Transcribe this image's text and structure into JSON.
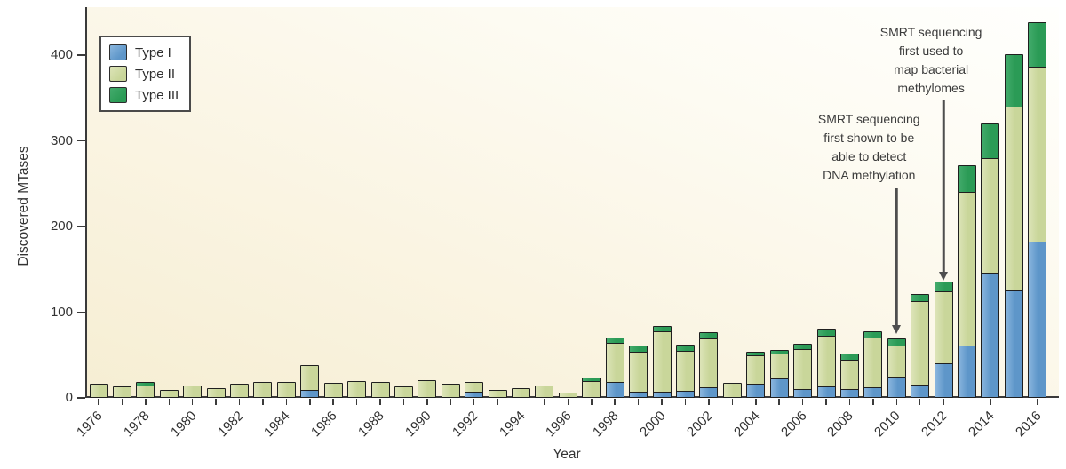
{
  "chart_data": {
    "type": "bar",
    "stacked": true,
    "xlabel": "Year",
    "ylabel": "Discovered MTases",
    "ylim": [
      0,
      440
    ],
    "yticks": [
      0,
      100,
      200,
      300,
      400
    ],
    "x_tick_label_every": 2,
    "grid": false,
    "legend_position": "top-left",
    "categories": [
      1976,
      1977,
      1978,
      1979,
      1980,
      1981,
      1982,
      1983,
      1984,
      1985,
      1986,
      1987,
      1988,
      1989,
      1990,
      1991,
      1992,
      1993,
      1994,
      1995,
      1996,
      1997,
      1998,
      1999,
      2000,
      2001,
      2002,
      2003,
      2004,
      2005,
      2006,
      2007,
      2008,
      2009,
      2010,
      2011,
      2012,
      2013,
      2014,
      2015,
      2016
    ],
    "series": [
      {
        "name": "Type I",
        "color": "#5e96c9",
        "highlight": "#8ab6de",
        "values": [
          0,
          0,
          0,
          0,
          0,
          0,
          0,
          0,
          0,
          6,
          0,
          0,
          0,
          0,
          0,
          0,
          4,
          0,
          0,
          0,
          0,
          0,
          16,
          4,
          4,
          5,
          9,
          0,
          13,
          20,
          7,
          10,
          7,
          9,
          22,
          12,
          37,
          58,
          143,
          122,
          179
        ]
      },
      {
        "name": "Type II",
        "color": "#c9d69a",
        "highlight": "#dde4b8",
        "values": [
          14,
          10,
          11,
          6,
          11,
          8,
          14,
          16,
          16,
          28,
          15,
          17,
          16,
          10,
          18,
          13,
          10,
          6,
          8,
          11,
          3,
          17,
          44,
          45,
          69,
          45,
          56,
          15,
          32,
          27,
          45,
          58,
          33,
          57,
          35,
          96,
          83,
          178,
          132,
          213,
          203
        ]
      },
      {
        "name": "Type III",
        "color": "#2b9b56",
        "highlight": "#43ab6c",
        "values": [
          0,
          0,
          3,
          0,
          0,
          0,
          0,
          0,
          0,
          0,
          0,
          0,
          0,
          0,
          0,
          0,
          0,
          0,
          0,
          0,
          0,
          2,
          4,
          6,
          5,
          6,
          5,
          0,
          3,
          3,
          5,
          7,
          6,
          6,
          6,
          7,
          10,
          29,
          39,
          60,
          50
        ]
      }
    ],
    "annotations": [
      {
        "lines": [
          "SMRT sequencing",
          "first used to",
          "map bacterial",
          "methylomes"
        ],
        "target_year": 2012
      },
      {
        "lines": [
          "SMRT sequencing",
          "first shown to be",
          "able to detect",
          "DNA methylation"
        ],
        "target_year": 2010
      }
    ]
  },
  "colors": {
    "type1_blue": "#5e96c9",
    "type2_light_green": "#c9d69a",
    "type3_green": "#2b9b56",
    "plot_background_cream": "#f6eed3",
    "axis": "#3a3a3a",
    "text": "#333333",
    "bar_border": "#1f1f1f",
    "arrow": "#4e4e4e",
    "legend_border": "#4a4a4a"
  }
}
